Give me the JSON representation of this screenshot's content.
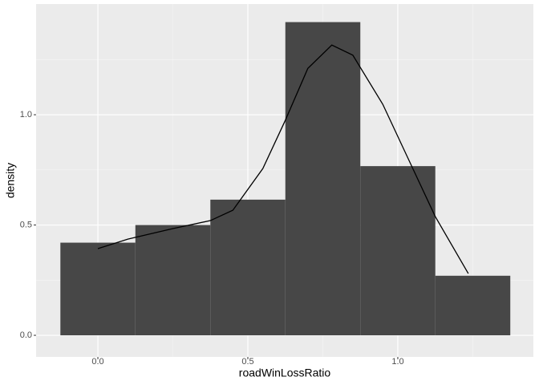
{
  "chart_data": {
    "type": "histogram",
    "x_label": "roadWinLossRatio",
    "y_label": "density",
    "bins": [
      -0.125,
      0.125,
      0.375,
      0.625,
      0.875,
      1.125,
      1.375
    ],
    "values": [
      0.42,
      0.5,
      0.615,
      1.42,
      0.767,
      0.27
    ],
    "color": "#474747",
    "density": {
      "color": "#000000",
      "x": [
        0,
        0.1,
        0.25,
        0.375,
        0.45,
        0.55,
        0.625,
        0.7,
        0.78,
        0.85,
        0.95,
        1.05,
        1.125,
        1.235
      ],
      "values": [
        0.393,
        0.436,
        0.484,
        0.52,
        0.567,
        0.756,
        0.975,
        1.21,
        1.316,
        1.27,
        1.047,
        0.756,
        0.538,
        0.28
      ]
    },
    "xlim": [
      -0.206,
      1.452
    ],
    "ylim": [
      -0.098,
      1.502
    ],
    "xticks": [
      {
        "value": 0,
        "label": "0.0"
      },
      {
        "value": 0.5,
        "label": "0.5"
      },
      {
        "value": 1,
        "label": "1.0"
      }
    ],
    "yticks": [
      {
        "value": 0,
        "label": "0.0"
      },
      {
        "value": 0.5,
        "label": "0.5"
      },
      {
        "value": 1,
        "label": "1.0"
      }
    ],
    "grid": true
  }
}
